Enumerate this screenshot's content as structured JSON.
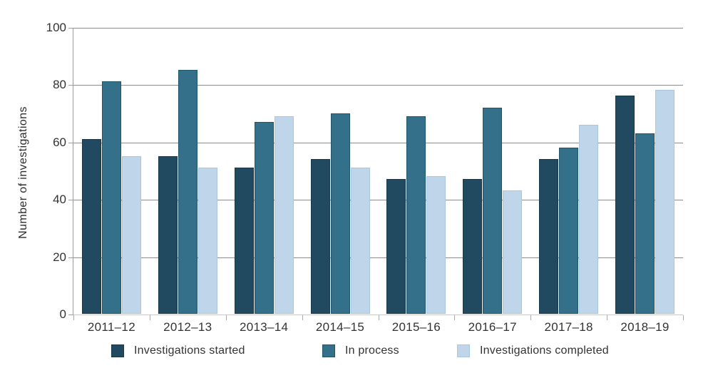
{
  "chart_data": {
    "type": "bar",
    "title": "",
    "xlabel": "",
    "ylabel": "Number of investigations",
    "ylim": [
      0,
      100
    ],
    "yticks": [
      0,
      20,
      40,
      60,
      80,
      100
    ],
    "grid": true,
    "legend_position": "bottom",
    "categories": [
      "2011–12",
      "2012–13",
      "2013–14",
      "2014–15",
      "2015–16",
      "2016–17",
      "2017–18",
      "2018–19"
    ],
    "series": [
      {
        "name": "Investigations started",
        "color": "#214A61",
        "border_color": "#16384C",
        "values": [
          61,
          55,
          51,
          54,
          47,
          47,
          54,
          76
        ]
      },
      {
        "name": "In process",
        "color": "#35708B",
        "border_color": "#1F566C",
        "values": [
          81,
          85,
          67,
          70,
          69,
          72,
          58,
          63
        ]
      },
      {
        "name": "Investigations completed",
        "color": "#BFD5EA",
        "border_color": "#A9C6E0",
        "values": [
          55,
          51,
          69,
          51,
          48,
          43,
          66,
          78
        ]
      }
    ]
  }
}
